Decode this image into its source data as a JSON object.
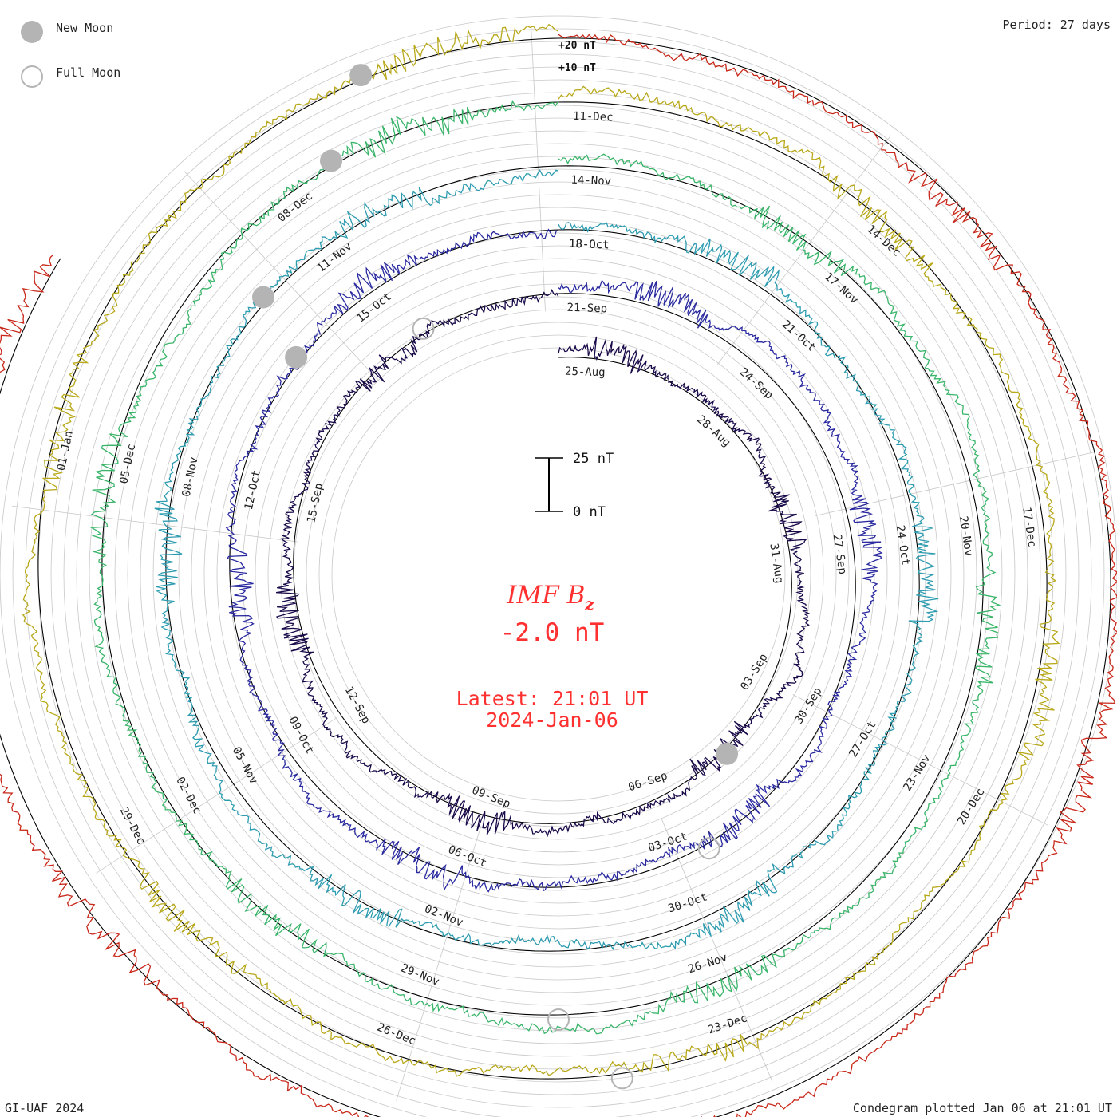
{
  "header": {
    "period_label": "Period: 27 days",
    "credit": "GI-UAF 2024",
    "plotted_label": "Condegram plotted Jan 06 at 21:01 UT"
  },
  "legend": {
    "new_moon": "New Moon",
    "full_moon": "Full Moon",
    "new_moon_color": "#b4b4b4",
    "full_moon_color": "#b4b4b4"
  },
  "center": {
    "parameter_main": "IMF B",
    "parameter_sub": "z",
    "current_value": "-2.0 nT",
    "latest_time": "Latest: 21:01 UT",
    "latest_date": "2024-Jan-06",
    "text_color": "#ff3030"
  },
  "scale_bar": {
    "top_label": "25 nT",
    "bottom_label": "0 nT"
  },
  "chart_data": {
    "type": "line",
    "title": "IMF Bz",
    "period_days": 27,
    "units": "nT",
    "ring_scale_labels": [
      "+20 nT",
      "+10 nT"
    ],
    "series": [
      {
        "color": "#1a0a4a",
        "labels": [
          "25-Aug",
          "28-Aug",
          "31-Aug",
          "03-Sep",
          "06-Sep",
          "09-Sep",
          "12-Sep",
          "15-Sep"
        ]
      },
      {
        "color": "#2a2aa0",
        "labels": [
          "21-Sep",
          "24-Sep",
          "27-Sep",
          "30-Sep",
          "03-Oct",
          "06-Oct",
          "09-Oct",
          "12-Oct",
          "15-Oct",
          "18-Oct"
        ]
      },
      {
        "color": "#2e9cb0",
        "labels": [
          "18-Oct",
          "21-Oct",
          "24-Oct",
          "27-Oct",
          "30-Oct",
          "02-Nov",
          "05-Nov",
          "08-Nov",
          "11-Nov"
        ]
      },
      {
        "color": "#3ab56a",
        "labels": [
          "14-Nov",
          "17-Nov",
          "20-Nov",
          "23-Nov",
          "26-Nov",
          "29-Nov",
          "02-Dec",
          "05-Dec",
          "08-Dec"
        ]
      },
      {
        "color": "#b8a81a",
        "labels": [
          "11-Dec",
          "14-Dec",
          "17-Dec",
          "20-Dec",
          "23-Dec",
          "26-Dec",
          "29-Dec",
          "01-Jan"
        ]
      },
      {
        "color": "#c8281a",
        "labels": []
      }
    ]
  }
}
